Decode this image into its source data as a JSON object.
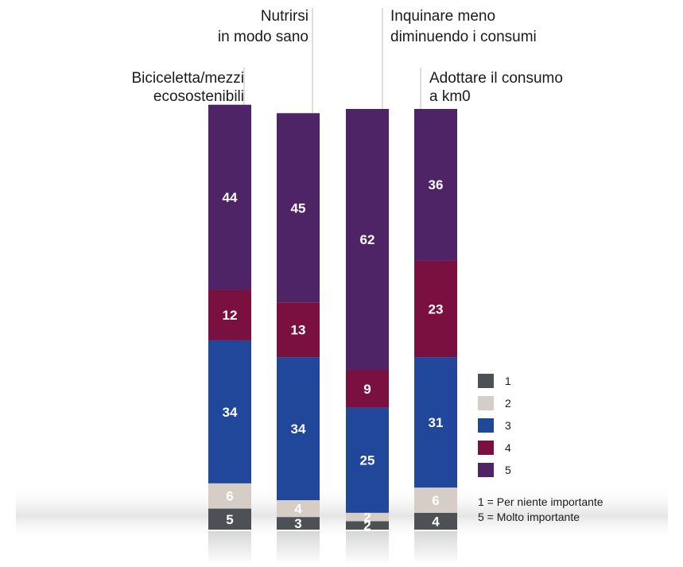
{
  "chart_data": {
    "type": "bar",
    "stacked": true,
    "categories": [
      [
        "Biciceletta/mezzi",
        "ecosostenibili"
      ],
      [
        "Nutrirsi",
        "in modo sano"
      ],
      [
        "Inquinare meno",
        "diminuendo i consumi"
      ],
      [
        "Adottare il consumo",
        "a km0"
      ]
    ],
    "series": [
      {
        "name": "1",
        "color": "#4d5054",
        "values": [
          5,
          3,
          2,
          4
        ]
      },
      {
        "name": "2",
        "color": "#d6cdc6",
        "values": [
          6,
          4,
          2,
          6
        ]
      },
      {
        "name": "3",
        "color": "#20479a",
        "values": [
          34,
          34,
          25,
          31
        ]
      },
      {
        "name": "4",
        "color": "#7a1040",
        "values": [
          12,
          13,
          9,
          23
        ]
      },
      {
        "name": "5",
        "color": "#4f2466",
        "values": [
          44,
          45,
          62,
          36
        ]
      }
    ],
    "legend_position": "right",
    "notes": [
      "1 = Per niente importante",
      "5 = Molto importante"
    ]
  }
}
